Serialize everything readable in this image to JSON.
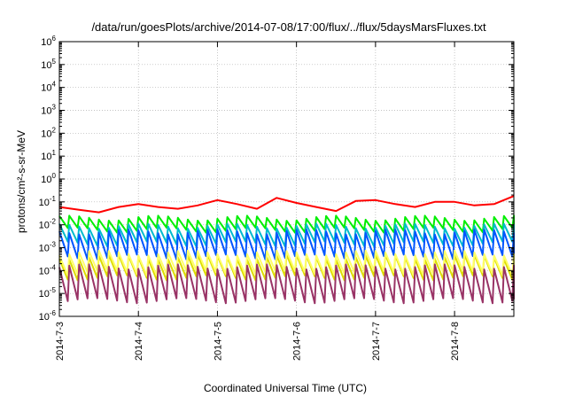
{
  "chart_data": {
    "type": "line",
    "title": "/data/run/goesPlots/archive/2014-07-08/17:00/flux/../flux/5daysMarsFluxes.txt",
    "xlabel": "Coordinated Universal Time (UTC)",
    "ylabel": "protons/cm²-s-sr-MeV",
    "y_scale": "log",
    "ylim": [
      1e-06,
      1000000.0
    ],
    "xlim": [
      "2014-07-03",
      "2014-07-08 18:00"
    ],
    "grid": true,
    "x_tick_labels": [
      "2014-7-3",
      "2014-7-4",
      "2014-7-5",
      "2014-7-6",
      "2014-7-7",
      "2014-7-8"
    ],
    "y_ticks": [
      {
        "base": "10",
        "exp": "-6"
      },
      {
        "base": "10",
        "exp": "-5"
      },
      {
        "base": "10",
        "exp": "-4"
      },
      {
        "base": "10",
        "exp": "-3"
      },
      {
        "base": "10",
        "exp": "-2"
      },
      {
        "base": "10",
        "exp": "-1"
      },
      {
        "base": "10",
        "exp": "0"
      },
      {
        "base": "10",
        "exp": "1"
      },
      {
        "base": "10",
        "exp": "2"
      },
      {
        "base": "10",
        "exp": "3"
      },
      {
        "base": "10",
        "exp": "4"
      },
      {
        "base": "10",
        "exp": "5"
      },
      {
        "base": "10",
        "exp": "6"
      }
    ],
    "series": [
      {
        "color": "#ff0000",
        "sawtooth": false,
        "values": [
          [
            "2014-07-03 00:00",
            0.06
          ],
          [
            "2014-07-03 06:00",
            0.045
          ],
          [
            "2014-07-03 12:00",
            0.035
          ],
          [
            "2014-07-03 18:00",
            0.06
          ],
          [
            "2014-07-04 00:00",
            0.08
          ],
          [
            "2014-07-04 06:00",
            0.06
          ],
          [
            "2014-07-04 12:00",
            0.05
          ],
          [
            "2014-07-04 18:00",
            0.07
          ],
          [
            "2014-07-05 00:00",
            0.12
          ],
          [
            "2014-07-05 06:00",
            0.08
          ],
          [
            "2014-07-05 12:00",
            0.05
          ],
          [
            "2014-07-05 18:00",
            0.15
          ],
          [
            "2014-07-06 00:00",
            0.09
          ],
          [
            "2014-07-06 06:00",
            0.06
          ],
          [
            "2014-07-06 12:00",
            0.04
          ],
          [
            "2014-07-06 18:00",
            0.11
          ],
          [
            "2014-07-07 00:00",
            0.12
          ],
          [
            "2014-07-07 06:00",
            0.08
          ],
          [
            "2014-07-07 12:00",
            0.06
          ],
          [
            "2014-07-07 18:00",
            0.1
          ],
          [
            "2014-07-08 00:00",
            0.1
          ],
          [
            "2014-07-08 06:00",
            0.07
          ],
          [
            "2014-07-08 12:00",
            0.08
          ],
          [
            "2014-07-08 18:00",
            0.18
          ]
        ]
      },
      {
        "color": "#00ee00",
        "sawtooth": true,
        "period_hours": 3,
        "low": 0.006,
        "high": 0.02
      },
      {
        "color": "#00bbcc",
        "sawtooth": true,
        "period_hours": 3,
        "low": 0.0015,
        "high": 0.009
      },
      {
        "color": "#0055ff",
        "sawtooth": true,
        "period_hours": 3,
        "low": 0.0004,
        "high": 0.005
      },
      {
        "color": "#dddd00",
        "sawtooth": true,
        "period_hours": 3,
        "low": 5e-05,
        "high": 0.0004
      },
      {
        "color": "#ffff66",
        "sawtooth": true,
        "period_hours": 3,
        "low": 8e-05,
        "high": 0.0006
      },
      {
        "color": "#993366",
        "sawtooth": true,
        "period_hours": 3,
        "low": 5e-06,
        "high": 0.00015
      }
    ]
  }
}
